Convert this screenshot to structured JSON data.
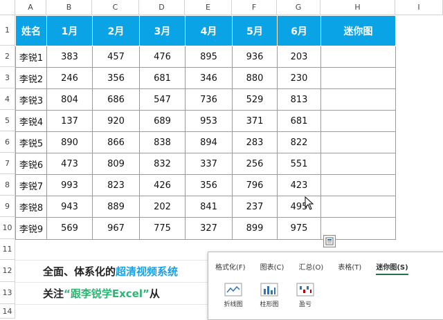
{
  "columns": [
    "A",
    "B",
    "C",
    "D",
    "E",
    "F",
    "G",
    "H",
    "I"
  ],
  "rows": [
    "1",
    "2",
    "3",
    "4",
    "5",
    "6",
    "7",
    "8",
    "9",
    "10",
    "11",
    "12",
    "13",
    "14"
  ],
  "table": {
    "headers": [
      "姓名",
      "1月",
      "2月",
      "3月",
      "4月",
      "5月",
      "6月",
      "迷你图"
    ],
    "data": [
      [
        "李锐1",
        "383",
        "457",
        "476",
        "895",
        "936",
        "203"
      ],
      [
        "李锐2",
        "246",
        "356",
        "681",
        "346",
        "880",
        "230"
      ],
      [
        "李锐3",
        "804",
        "686",
        "547",
        "736",
        "529",
        "813"
      ],
      [
        "李锐4",
        "137",
        "920",
        "689",
        "953",
        "371",
        "681"
      ],
      [
        "李锐5",
        "890",
        "866",
        "838",
        "894",
        "283",
        "822"
      ],
      [
        "李锐6",
        "473",
        "809",
        "832",
        "337",
        "256",
        "551"
      ],
      [
        "李锐7",
        "993",
        "823",
        "426",
        "356",
        "796",
        "423"
      ],
      [
        "李锐8",
        "943",
        "889",
        "202",
        "841",
        "237",
        "495"
      ],
      [
        "李锐9",
        "569",
        "967",
        "775",
        "327",
        "899",
        "975"
      ]
    ]
  },
  "promo": {
    "line1_a": "全面、体系化的",
    "line1_b": "超清视频系统",
    "line2_a": "关注",
    "line2_b": "“跟李锐学Excel”",
    "line2_c": "从"
  },
  "quick_analysis": {
    "tabs": [
      "格式化(F)",
      "图表(C)",
      "汇总(O)",
      "表格(T)",
      "迷你图(S)"
    ],
    "active_tab": "迷你图(S)",
    "buttons": [
      "折线图",
      "柱形图",
      "盈亏"
    ]
  },
  "colors": {
    "header_bg": "#0aa3e6",
    "accent_green": "#217346",
    "blue_text": "#1ba1e2",
    "green_text": "#2bb673"
  }
}
